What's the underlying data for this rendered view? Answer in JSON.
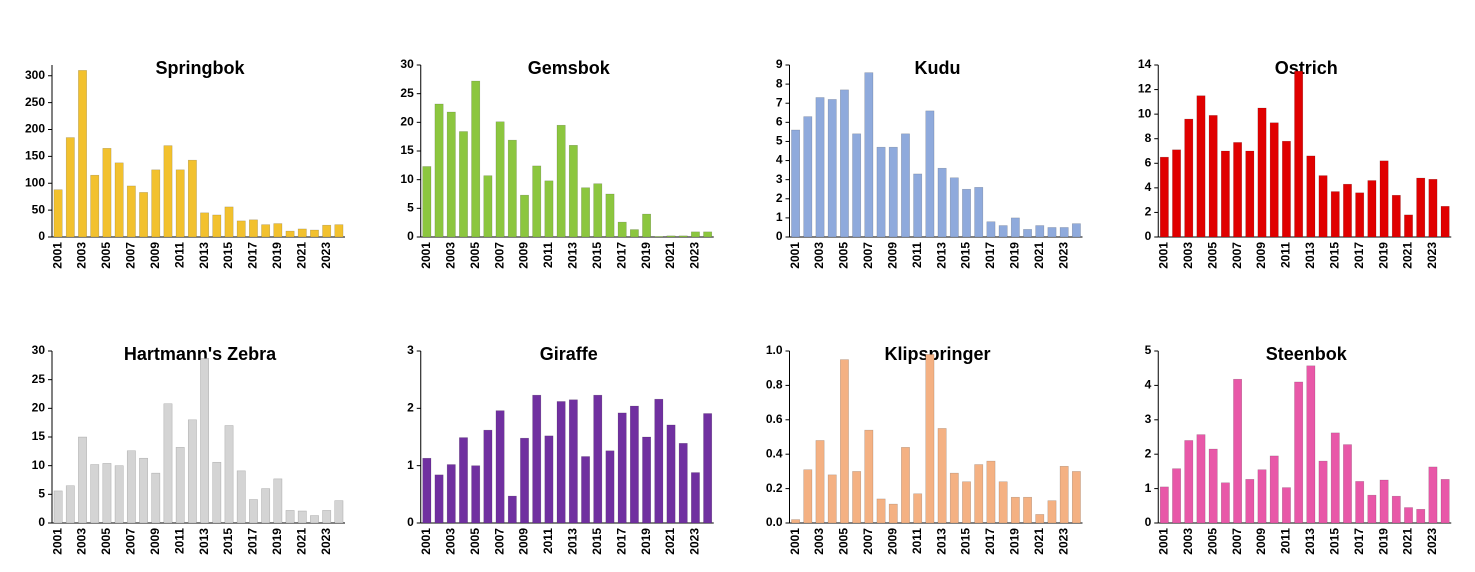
{
  "chart_data": [
    {
      "type": "bar",
      "title": "Springbok",
      "color": "#f2c12e",
      "categories": [
        "2001",
        null,
        "2003",
        null,
        "2005",
        null,
        "2007",
        null,
        "2009",
        null,
        "2011",
        null,
        "2013",
        null,
        "2015",
        null,
        "2017",
        null,
        "2019",
        null,
        "2021",
        null,
        "2023",
        null
      ],
      "values": [
        88,
        185,
        310,
        115,
        165,
        138,
        95,
        83,
        125,
        170,
        125,
        143,
        45,
        41,
        56,
        30,
        32,
        23,
        25,
        11,
        15,
        13,
        22,
        23
      ],
      "ylim": [
        0,
        320
      ],
      "yticks": [
        0,
        50,
        100,
        150,
        200,
        250,
        300
      ]
    },
    {
      "type": "bar",
      "title": "Gemsbok",
      "color": "#8cc63f",
      "categories": [
        "2001",
        null,
        "2003",
        null,
        "2005",
        null,
        "2007",
        null,
        "2009",
        null,
        "2011",
        null,
        "2013",
        null,
        "2015",
        null,
        "2017",
        null,
        "2019",
        null,
        "2021",
        null,
        "2023",
        null
      ],
      "values": [
        12.3,
        23.2,
        21.8,
        18.4,
        27.2,
        10.7,
        20.1,
        16.9,
        7.3,
        12.4,
        9.8,
        19.5,
        16.0,
        8.6,
        9.3,
        7.5,
        2.6,
        1.3,
        4.0,
        0.1,
        0.2,
        0.2,
        0.9,
        0.9
      ],
      "ylim": [
        0,
        30
      ],
      "yticks": [
        0,
        5,
        10,
        15,
        20,
        25,
        30
      ]
    },
    {
      "type": "bar",
      "title": "Kudu",
      "color": "#8faadc",
      "categories": [
        "2001",
        null,
        "2003",
        null,
        "2005",
        null,
        "2007",
        null,
        "2009",
        null,
        "2011",
        null,
        "2013",
        null,
        "2015",
        null,
        "2017",
        null,
        "2019",
        null,
        "2021",
        null,
        "2023",
        null
      ],
      "values": [
        5.6,
        6.3,
        7.3,
        7.2,
        7.7,
        5.4,
        8.6,
        4.7,
        4.7,
        5.4,
        3.3,
        6.6,
        3.6,
        3.1,
        2.5,
        2.6,
        0.8,
        0.6,
        1.0,
        0.4,
        0.6,
        0.5,
        0.5,
        0.7
      ],
      "ylim": [
        0,
        9
      ],
      "yticks": [
        0,
        1,
        2,
        3,
        4,
        5,
        6,
        7,
        8,
        9
      ]
    },
    {
      "type": "bar",
      "title": "Ostrich",
      "color": "#e00000",
      "categories": [
        "2001",
        null,
        "2003",
        null,
        "2005",
        null,
        "2007",
        null,
        "2009",
        null,
        "2011",
        null,
        "2013",
        null,
        "2015",
        null,
        "2017",
        null,
        "2019",
        null,
        "2021",
        null,
        "2023",
        null
      ],
      "values": [
        6.5,
        7.1,
        9.6,
        11.5,
        9.9,
        7.0,
        7.7,
        7.0,
        10.5,
        9.3,
        7.8,
        13.5,
        6.6,
        5.0,
        3.7,
        4.3,
        3.6,
        4.6,
        6.2,
        3.4,
        1.8,
        4.8,
        4.7,
        2.5
      ],
      "ylim": [
        0,
        14
      ],
      "yticks": [
        0,
        2,
        4,
        6,
        8,
        10,
        12,
        14
      ]
    },
    {
      "type": "bar",
      "title": "Hartmann's Zebra",
      "color": "#d4d4d4",
      "categories": [
        "2001",
        null,
        "2003",
        null,
        "2005",
        null,
        "2007",
        null,
        "2009",
        null,
        "2011",
        null,
        "2013",
        null,
        "2015",
        null,
        "2017",
        null,
        "2019",
        null,
        "2021",
        null,
        "2023",
        null
      ],
      "values": [
        5.6,
        6.5,
        15.0,
        10.2,
        10.4,
        10.0,
        12.6,
        11.3,
        8.7,
        20.8,
        13.2,
        18.0,
        28.7,
        10.6,
        17.0,
        9.1,
        4.1,
        6.0,
        7.7,
        2.2,
        2.1,
        1.3,
        2.2,
        3.9
      ],
      "ylim": [
        0,
        30
      ],
      "yticks": [
        0,
        5,
        10,
        15,
        20,
        25,
        30
      ]
    },
    {
      "type": "bar",
      "title": "Giraffe",
      "color": "#7030a0",
      "categories": [
        "2001",
        null,
        "2003",
        null,
        "2005",
        null,
        "2007",
        null,
        "2009",
        null,
        "2011",
        null,
        "2013",
        null,
        "2015",
        null,
        "2017",
        null,
        "2019",
        null,
        "2021",
        null,
        "2023",
        null
      ],
      "values": [
        1.13,
        0.84,
        1.02,
        1.49,
        1.0,
        1.62,
        1.96,
        0.47,
        1.48,
        2.23,
        1.52,
        2.12,
        2.15,
        1.16,
        2.23,
        1.26,
        1.92,
        2.04,
        1.5,
        2.16,
        1.71,
        1.39,
        0.88,
        1.91
      ],
      "ylim": [
        0,
        3
      ],
      "yticks": [
        0,
        1,
        2,
        3
      ]
    },
    {
      "type": "bar",
      "title": "Klipspringer",
      "color": "#f4b183",
      "categories": [
        "2001",
        null,
        "2003",
        null,
        "2005",
        null,
        "2007",
        null,
        "2009",
        null,
        "2011",
        null,
        "2013",
        null,
        "2015",
        null,
        "2017",
        null,
        "2019",
        null,
        "2021",
        null,
        "2023",
        null
      ],
      "values": [
        0.02,
        0.31,
        0.48,
        0.28,
        0.95,
        0.3,
        0.54,
        0.14,
        0.11,
        0.44,
        0.17,
        0.98,
        0.55,
        0.29,
        0.24,
        0.34,
        0.36,
        0.24,
        0.15,
        0.15,
        0.05,
        0.13,
        0.33,
        0.3
      ],
      "ylim": [
        0,
        1
      ],
      "yticks": [
        {
          "value": 0,
          "label": "0.0"
        },
        0.2,
        0.4,
        0.6,
        0.8,
        {
          "value": 1,
          "label": "1.0"
        }
      ]
    },
    {
      "type": "bar",
      "title": "Steenbok",
      "color": "#e858a8",
      "categories": [
        "2001",
        null,
        "2003",
        null,
        "2005",
        null,
        "2007",
        null,
        "2009",
        null,
        "2011",
        null,
        "2013",
        null,
        "2015",
        null,
        "2017",
        null,
        "2019",
        null,
        "2021",
        null,
        "2023",
        null
      ],
      "values": [
        1.05,
        1.58,
        2.4,
        2.57,
        2.15,
        1.17,
        4.18,
        1.27,
        1.55,
        1.95,
        1.03,
        4.1,
        4.57,
        1.8,
        2.62,
        2.28,
        1.21,
        0.81,
        1.25,
        0.78,
        0.45,
        0.4,
        1.63,
        1.27
      ],
      "ylim": [
        0,
        5
      ],
      "yticks": [
        0,
        1,
        2,
        3,
        4,
        5
      ]
    }
  ]
}
